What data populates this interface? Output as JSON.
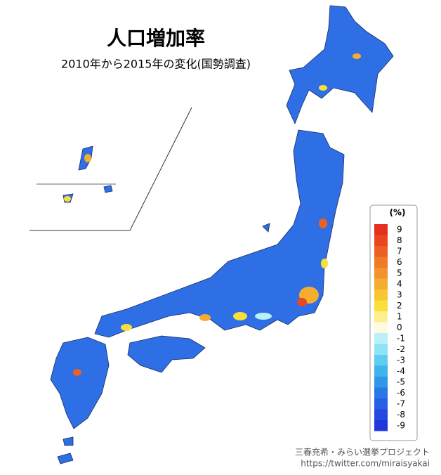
{
  "header": {
    "title": "人口増加率",
    "subtitle": "2010年から2015年の変化(国勢調査)"
  },
  "legend": {
    "title": "(%)",
    "items": [
      {
        "value": 9,
        "color": "#e4301e"
      },
      {
        "value": 8,
        "color": "#e8471f"
      },
      {
        "value": 7,
        "color": "#ec6023"
      },
      {
        "value": 6,
        "color": "#ef7a27"
      },
      {
        "value": 5,
        "color": "#f2932b"
      },
      {
        "value": 4,
        "color": "#f5ad2f"
      },
      {
        "value": 3,
        "color": "#f8c633"
      },
      {
        "value": 2,
        "color": "#fadf3a"
      },
      {
        "value": 1,
        "color": "#fcf08c"
      },
      {
        "value": 0,
        "color": "#fffbe2"
      },
      {
        "value": -1,
        "color": "#b9f1f8"
      },
      {
        "value": -2,
        "color": "#8ee4f4"
      },
      {
        "value": -3,
        "color": "#5dcdf0"
      },
      {
        "value": -4,
        "color": "#40b4ec"
      },
      {
        "value": -5,
        "color": "#3096e8"
      },
      {
        "value": -6,
        "color": "#2a78e6"
      },
      {
        "value": -7,
        "color": "#2760e4"
      },
      {
        "value": -8,
        "color": "#2448e0"
      },
      {
        "value": -9,
        "color": "#2236dc"
      }
    ]
  },
  "credit": {
    "author": "三春充希・みらい選挙プロジェクト",
    "url": "https://twitter.com/miraisyakai"
  }
}
